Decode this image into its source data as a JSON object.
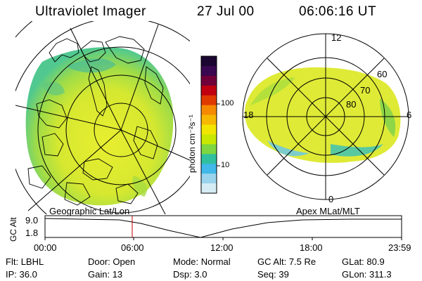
{
  "header": {
    "instrument": "Ultraviolet Imager",
    "date": "27 Jul 00",
    "time": "06:06:16 UT"
  },
  "colorbar": {
    "unit": "photon cm⁻²s⁻¹",
    "ticks": [
      "100",
      "10"
    ],
    "colors": [
      "#1a0630",
      "#3a0850",
      "#70003a",
      "#c00010",
      "#e03a00",
      "#f58a00",
      "#f6b800",
      "#f2e600",
      "#c8e800",
      "#7ed640",
      "#30c0a0",
      "#40b8e8",
      "#9ad4ec",
      "#d6ecf4"
    ]
  },
  "polar_plot": {
    "labels": [
      "12",
      "60",
      "70",
      "80",
      "18",
      "6",
      "0"
    ]
  },
  "timeline": {
    "left_label": "Geographic Lat/Lon",
    "right_label": "Apex MLat/MLT",
    "axis_title": "GC Alt",
    "y_ticks": [
      "9.0",
      "1.8"
    ],
    "x_ticks": [
      "00:00",
      "06:00",
      "12:00",
      "18:00",
      "23:59"
    ],
    "marker_color": "#c00000"
  },
  "status": {
    "row1": [
      {
        "k": "Flt:",
        "v": "LBHL"
      },
      {
        "k": "Door:",
        "v": "Open"
      },
      {
        "k": "Mode:",
        "v": "Normal"
      },
      {
        "k": "GC Alt:",
        "v": "7.5 Re"
      },
      {
        "k": "GLat:",
        "v": "80.9"
      }
    ],
    "row2": [
      {
        "k": "IP:",
        "v": "36.0"
      },
      {
        "k": "Gain:",
        "v": "13"
      },
      {
        "k": "Dsp:",
        "v": "3.0"
      },
      {
        "k": "Seq:",
        "v": "39"
      },
      {
        "k": "GLon:",
        "v": "311.3"
      }
    ]
  }
}
